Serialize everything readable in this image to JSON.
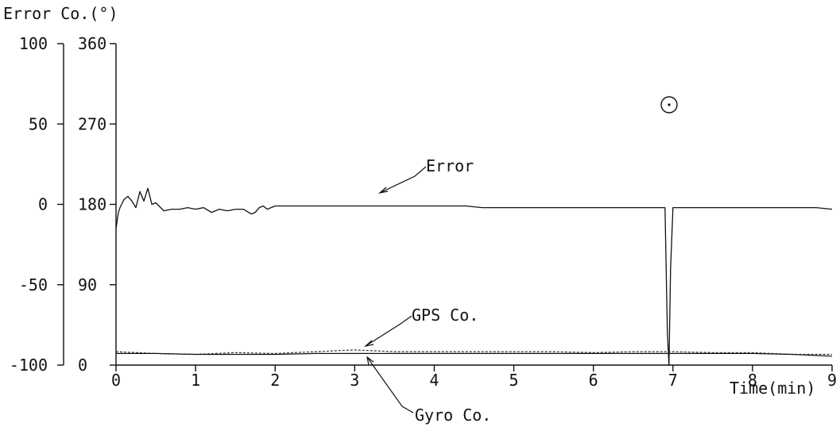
{
  "chart_data": {
    "type": "line",
    "title": "",
    "ylabel": "Error Co.(°)",
    "xlabel": "Time(min)",
    "xlim": [
      0,
      9
    ],
    "x_ticks": [
      "0",
      "1",
      "2",
      "3",
      "4",
      "5",
      "6",
      "7",
      "8",
      "9"
    ],
    "y_left": {
      "name": "Error",
      "ylim": [
        -100,
        100
      ],
      "ticks": [
        "100",
        "50",
        "0",
        "-50",
        "-100"
      ]
    },
    "y_right": {
      "name": "Co.",
      "ylim": [
        0,
        360
      ],
      "ticks": [
        "360",
        "270",
        "180",
        "90",
        "0"
      ]
    },
    "marker_label": "⊙",
    "series": [
      {
        "name": "Error",
        "axis": "left",
        "x": [
          0,
          0.03,
          0.05,
          0.1,
          0.15,
          0.2,
          0.25,
          0.3,
          0.35,
          0.4,
          0.45,
          0.5,
          0.6,
          0.7,
          0.8,
          0.9,
          1.0,
          1.1,
          1.2,
          1.3,
          1.4,
          1.5,
          1.6,
          1.7,
          1.75,
          1.8,
          1.85,
          1.9,
          2.0,
          2.2,
          2.4,
          2.6,
          2.8,
          3.0,
          3.2,
          3.4,
          3.6,
          3.8,
          4.0,
          4.2,
          4.4,
          4.6,
          4.8,
          5.0,
          5.2,
          5.4,
          5.6,
          5.8,
          6.0,
          6.2,
          6.4,
          6.6,
          6.8,
          6.9,
          6.93,
          6.95,
          6.97,
          7.0,
          7.2,
          7.4,
          7.6,
          7.8,
          8.0,
          8.2,
          8.4,
          8.6,
          8.8,
          9.0
        ],
        "y": [
          -15,
          -5,
          -2,
          3,
          5,
          2,
          -2,
          8,
          2,
          10,
          0,
          1,
          -4,
          -3,
          -3,
          -2,
          -3,
          -2,
          -5,
          -3,
          -4,
          -3,
          -3,
          -6,
          -5,
          -2,
          -1,
          -3,
          -1,
          -1,
          -1,
          -1,
          -1,
          -1,
          -1,
          -1,
          -1,
          -1,
          -1,
          -1,
          -1,
          -2,
          -2,
          -2,
          -2,
          -2,
          -2,
          -2,
          -2,
          -2,
          -2,
          -2,
          -2,
          -2,
          -80,
          -100,
          -40,
          -2,
          -2,
          -2,
          -2,
          -2,
          -2,
          -2,
          -2,
          -2,
          -2,
          -3
        ]
      },
      {
        "name": "GPS Co.",
        "axis": "right",
        "x": [
          0,
          0.5,
          1.0,
          1.5,
          2.0,
          2.5,
          3.0,
          3.5,
          4.0,
          4.5,
          5.0,
          5.5,
          6.0,
          6.5,
          7.0,
          7.5,
          8.0,
          8.5,
          9.0
        ],
        "y": [
          15,
          13,
          12,
          14,
          13,
          15,
          17,
          15,
          15,
          15,
          15,
          15,
          14,
          15,
          15,
          14,
          14,
          12,
          12
        ]
      },
      {
        "name": "Gyro Co.",
        "axis": "right",
        "x": [
          0,
          0.5,
          1.0,
          1.5,
          2.0,
          2.5,
          3.0,
          3.5,
          4.0,
          4.5,
          5.0,
          5.5,
          6.0,
          6.5,
          7.0,
          7.5,
          8.0,
          8.5,
          9.0
        ],
        "y": [
          13,
          13,
          12,
          12,
          12,
          13,
          13,
          13,
          13,
          13,
          13,
          13,
          13,
          13,
          13,
          13,
          13,
          12,
          10
        ]
      }
    ],
    "annotations": [
      {
        "text": "Error",
        "target": "Error"
      },
      {
        "text": "GPS Co.",
        "target": "GPS Co."
      },
      {
        "text": "Gyro Co.",
        "target": "Gyro Co."
      }
    ]
  }
}
